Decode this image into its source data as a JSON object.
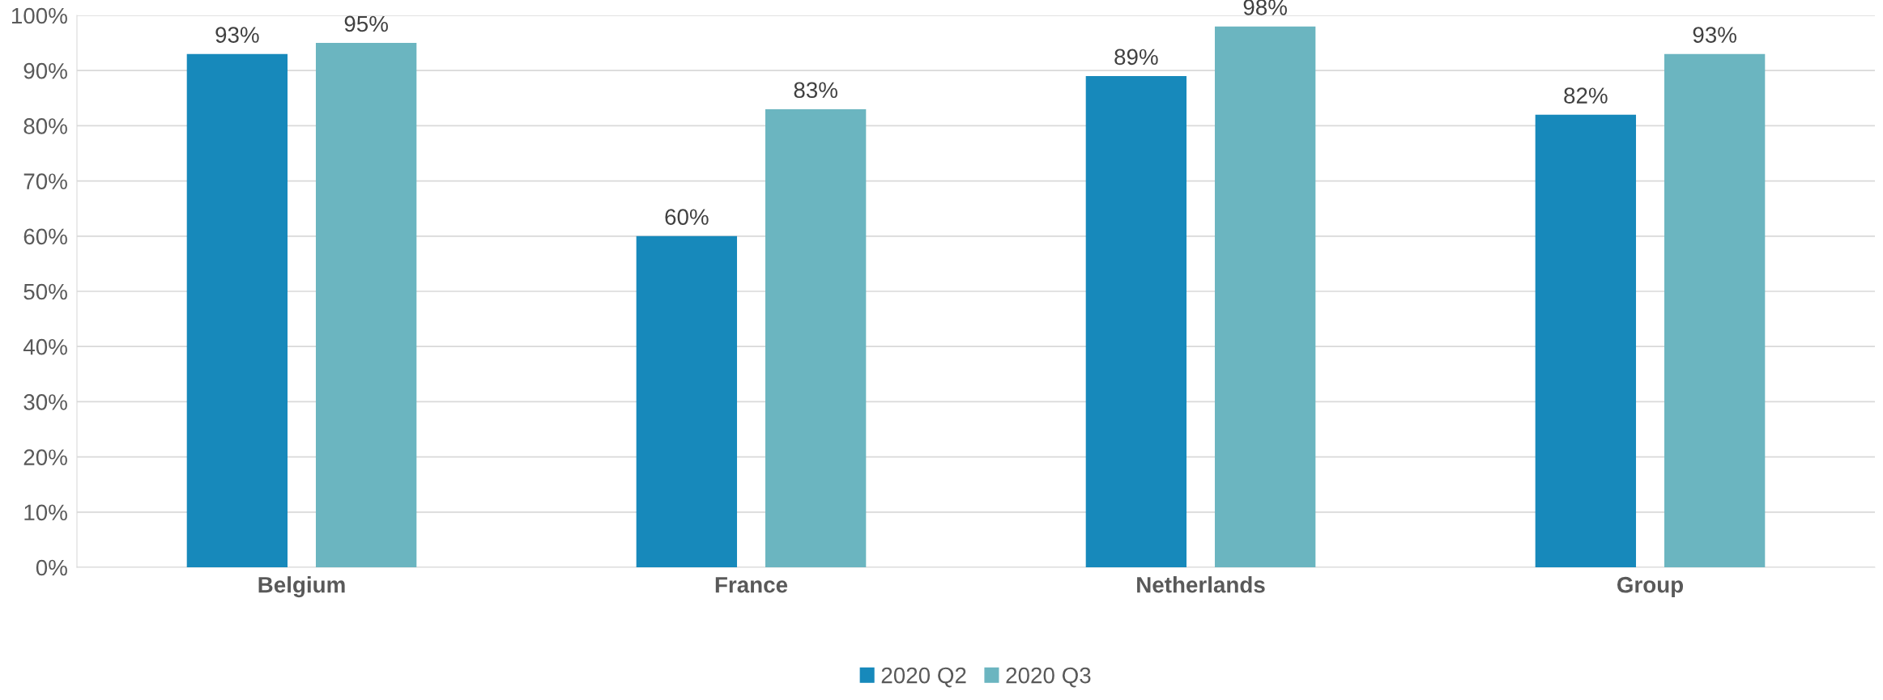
{
  "chart_data": {
    "type": "bar",
    "categories": [
      "Belgium",
      "France",
      "Netherlands",
      "Group"
    ],
    "series": [
      {
        "name": "2020 Q2",
        "color": "#1789bb",
        "values": [
          93,
          60,
          89,
          82
        ],
        "value_labels": [
          "93%",
          "60%",
          "89%",
          "82%"
        ]
      },
      {
        "name": "2020 Q3",
        "color": "#6bb5c0",
        "values": [
          95,
          83,
          98,
          93
        ],
        "value_labels": [
          "95%",
          "83%",
          "98%",
          "93%"
        ]
      }
    ],
    "ylim": [
      0,
      100
    ],
    "yticks": [
      {
        "value": 0,
        "label": "0%"
      },
      {
        "value": 10,
        "label": "10%"
      },
      {
        "value": 20,
        "label": "20%"
      },
      {
        "value": 30,
        "label": "30%"
      },
      {
        "value": 40,
        "label": "40%"
      },
      {
        "value": 50,
        "label": "50%"
      },
      {
        "value": 60,
        "label": "60%"
      },
      {
        "value": 70,
        "label": "70%"
      },
      {
        "value": 80,
        "label": "80%"
      },
      {
        "value": 90,
        "label": "90%"
      },
      {
        "value": 100,
        "label": "100%"
      }
    ],
    "grid": "y",
    "legend": "bottom"
  }
}
